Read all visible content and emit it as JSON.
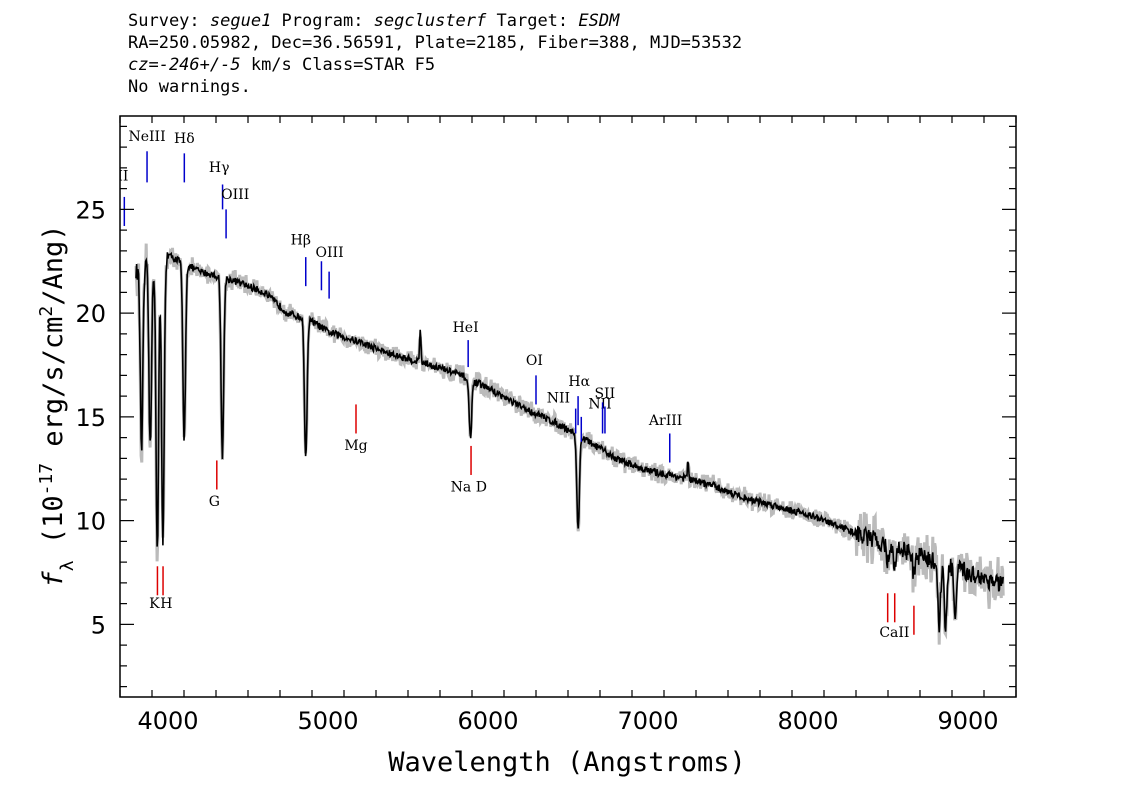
{
  "header": {
    "survey_label": "Survey: ",
    "survey": "segue1",
    "program_label": " Program: ",
    "program": "segclusterf",
    "target_label": " Target: ",
    "target": "ESDM",
    "coords": "RA=250.05982, Dec=36.56591, Plate=2185, Fiber=388, MJD=53532",
    "cz_value": "cz=-246+/-5",
    "cz_rest": " km/s Class=STAR F5",
    "warnings": "No warnings."
  },
  "chart_data": {
    "type": "line",
    "xlabel": "Wavelength (Angstroms)",
    "ylabel": "f_λ (10^-17 erg/s/cm^2/Ang)",
    "xlim": [
      3700,
      9300
    ],
    "ylim": [
      1.5,
      29.5
    ],
    "x_ticks": [
      4000,
      5000,
      6000,
      7000,
      8000,
      9000
    ],
    "y_ticks": [
      5,
      10,
      15,
      20,
      25
    ],
    "colors": {
      "spectrum": "#000000",
      "error": "#bbbbbb",
      "emission": "#0000cc",
      "absorption": "#dd0000"
    },
    "continuum": [
      [
        3800,
        22.0
      ],
      [
        4000,
        22.8
      ],
      [
        4200,
        22.0
      ],
      [
        4400,
        21.6
      ],
      [
        4600,
        21.0
      ],
      [
        4750,
        20.0
      ],
      [
        4900,
        19.6
      ],
      [
        5000,
        19.1
      ],
      [
        5200,
        18.6
      ],
      [
        5400,
        18.0
      ],
      [
        5600,
        17.6
      ],
      [
        5800,
        17.1
      ],
      [
        6000,
        16.4
      ],
      [
        6200,
        15.5
      ],
      [
        6400,
        14.8
      ],
      [
        6550,
        14.2
      ],
      [
        6650,
        13.7
      ],
      [
        6800,
        13.0
      ],
      [
        7000,
        12.4
      ],
      [
        7200,
        12.1
      ],
      [
        7400,
        11.7
      ],
      [
        7600,
        11.1
      ],
      [
        7800,
        10.7
      ],
      [
        8000,
        10.3
      ],
      [
        8200,
        9.7
      ],
      [
        8400,
        9.1
      ],
      [
        8600,
        8.6
      ],
      [
        8800,
        8.0
      ],
      [
        9000,
        7.5
      ],
      [
        9220,
        6.9
      ]
    ],
    "absorption_features": [
      {
        "x": 3835,
        "y": 13.5
      },
      {
        "x": 3889,
        "y": 13.4
      },
      {
        "x": 3933,
        "y": 8.6
      },
      {
        "x": 3968,
        "y": 8.8
      },
      {
        "x": 4101,
        "y": 13.8
      },
      {
        "x": 4340,
        "y": 13.0
      },
      {
        "x": 4861,
        "y": 12.9
      },
      {
        "x": 5890,
        "y": 14.0
      },
      {
        "x": 6563,
        "y": 9.5
      },
      {
        "x": 8498,
        "y": 8.0
      },
      {
        "x": 8542,
        "y": 7.6
      },
      {
        "x": 8662,
        "y": 7.3
      },
      {
        "x": 8820,
        "y": 5.0
      },
      {
        "x": 8860,
        "y": 4.8
      },
      {
        "x": 8920,
        "y": 5.3
      }
    ],
    "spikes": [
      {
        "x": 5577,
        "y": 19.3
      },
      {
        "x": 7250,
        "y": 12.8
      }
    ],
    "emission_lines": [
      {
        "label": "ΙΙ",
        "x": 3727,
        "y_top": 25.6,
        "y_bot": 24.2,
        "lx": 3718,
        "ly": 26.4
      },
      {
        "label": "NeIII",
        "x": 3869,
        "y_top": 27.8,
        "y_bot": 26.3,
        "lx": 3869,
        "ly": 28.3
      },
      {
        "label": "Hδ",
        "x": 4102,
        "y_top": 27.7,
        "y_bot": 26.3,
        "lx": 4102,
        "ly": 28.2
      },
      {
        "label": "Hγ",
        "x": 4341,
        "y_top": 26.2,
        "y_bot": 25.0,
        "lx": 4320,
        "ly": 26.8
      },
      {
        "label": "OIII",
        "x": 4363,
        "y_top": 25.0,
        "y_bot": 23.6,
        "lx": 4420,
        "ly": 25.5
      },
      {
        "label": "Hβ",
        "x": 4861,
        "y_top": 22.7,
        "y_bot": 21.3,
        "lx": 4830,
        "ly": 23.3
      },
      {
        "label": "OIII",
        "x": 4959,
        "y_top": 22.5,
        "y_bot": 21.1,
        "lx": 5010,
        "ly": 22.7
      },
      {
        "label": "",
        "x": 5007,
        "y_top": 22.0,
        "y_bot": 20.7,
        "lx": 0,
        "ly": 0
      },
      {
        "label": "HeI",
        "x": 5876,
        "y_top": 18.7,
        "y_bot": 17.4,
        "lx": 5860,
        "ly": 19.1
      },
      {
        "label": "OI",
        "x": 6300,
        "y_top": 17.0,
        "y_bot": 15.6,
        "lx": 6290,
        "ly": 17.5
      },
      {
        "label": "NII",
        "x": 6548,
        "y_top": 15.4,
        "y_bot": 14.2,
        "lx": 6440,
        "ly": 15.7
      },
      {
        "label": "Hα",
        "x": 6563,
        "y_top": 16.0,
        "y_bot": 14.6,
        "lx": 6570,
        "ly": 16.5
      },
      {
        "label": "NII",
        "x": 6583,
        "y_top": 15.0,
        "y_bot": 13.8,
        "lx": 6700,
        "ly": 15.4
      },
      {
        "label": "SII",
        "x": 6716,
        "y_top": 15.7,
        "y_bot": 14.2,
        "lx": 6730,
        "ly": 15.9
      },
      {
        "label": "",
        "x": 6731,
        "y_top": 15.5,
        "y_bot": 14.2,
        "lx": 0,
        "ly": 0
      },
      {
        "label": "ArIII",
        "x": 7136,
        "y_top": 14.2,
        "y_bot": 12.8,
        "lx": 7110,
        "ly": 14.6
      }
    ],
    "absorption_lines": [
      {
        "label": "K",
        "x": 3934,
        "y_top": 7.8,
        "y_bot": 6.4,
        "lx": 3915,
        "ly": 5.8
      },
      {
        "label": "H",
        "x": 3969,
        "y_top": 7.8,
        "y_bot": 6.4,
        "lx": 3990,
        "ly": 5.8
      },
      {
        "label": "G",
        "x": 4305,
        "y_top": 12.9,
        "y_bot": 11.5,
        "lx": 4290,
        "ly": 10.7
      },
      {
        "label": "Mg",
        "x": 5175,
        "y_top": 15.6,
        "y_bot": 14.2,
        "lx": 5175,
        "ly": 13.4
      },
      {
        "label": "Na D",
        "x": 5894,
        "y_top": 13.6,
        "y_bot": 12.2,
        "lx": 5880,
        "ly": 11.4
      },
      {
        "label": "CaII",
        "x": 8498,
        "y_top": 6.5,
        "y_bot": 5.1,
        "lx": 8540,
        "ly": 4.4
      },
      {
        "label": "",
        "x": 8542,
        "y_top": 6.5,
        "y_bot": 5.1,
        "lx": 0,
        "ly": 0
      },
      {
        "label": "",
        "x": 8662,
        "y_top": 5.9,
        "y_bot": 4.5,
        "lx": 0,
        "ly": 0
      }
    ]
  }
}
